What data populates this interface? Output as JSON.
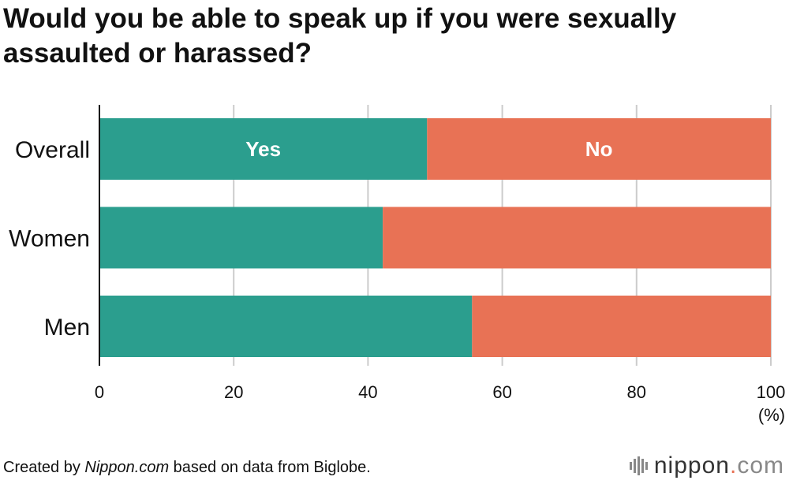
{
  "title": "Would you be able to speak up if you were sexually assaulted or harassed?",
  "footer": {
    "prefix": "Created by ",
    "source_name": "Nippon.com",
    "suffix": " based on data from Biglobe."
  },
  "logo": {
    "name": "nippon",
    "dot": ".",
    "tld": "com"
  },
  "colors": {
    "yes": "#2b9e8e",
    "no": "#e87255",
    "grid": "#cccccc",
    "axis": "#111111"
  },
  "chart_data": {
    "type": "bar",
    "orientation": "horizontal",
    "stacked": true,
    "categories": [
      "Overall",
      "Women",
      "Men"
    ],
    "series": [
      {
        "name": "Yes",
        "values": [
          48.8,
          42.2,
          55.5
        ]
      },
      {
        "name": "No",
        "values": [
          51.2,
          57.8,
          44.5
        ]
      }
    ],
    "xlim": [
      0,
      100
    ],
    "xticks": [
      0,
      20,
      40,
      60,
      80,
      100
    ],
    "xunit": "(%)",
    "grid": true
  }
}
